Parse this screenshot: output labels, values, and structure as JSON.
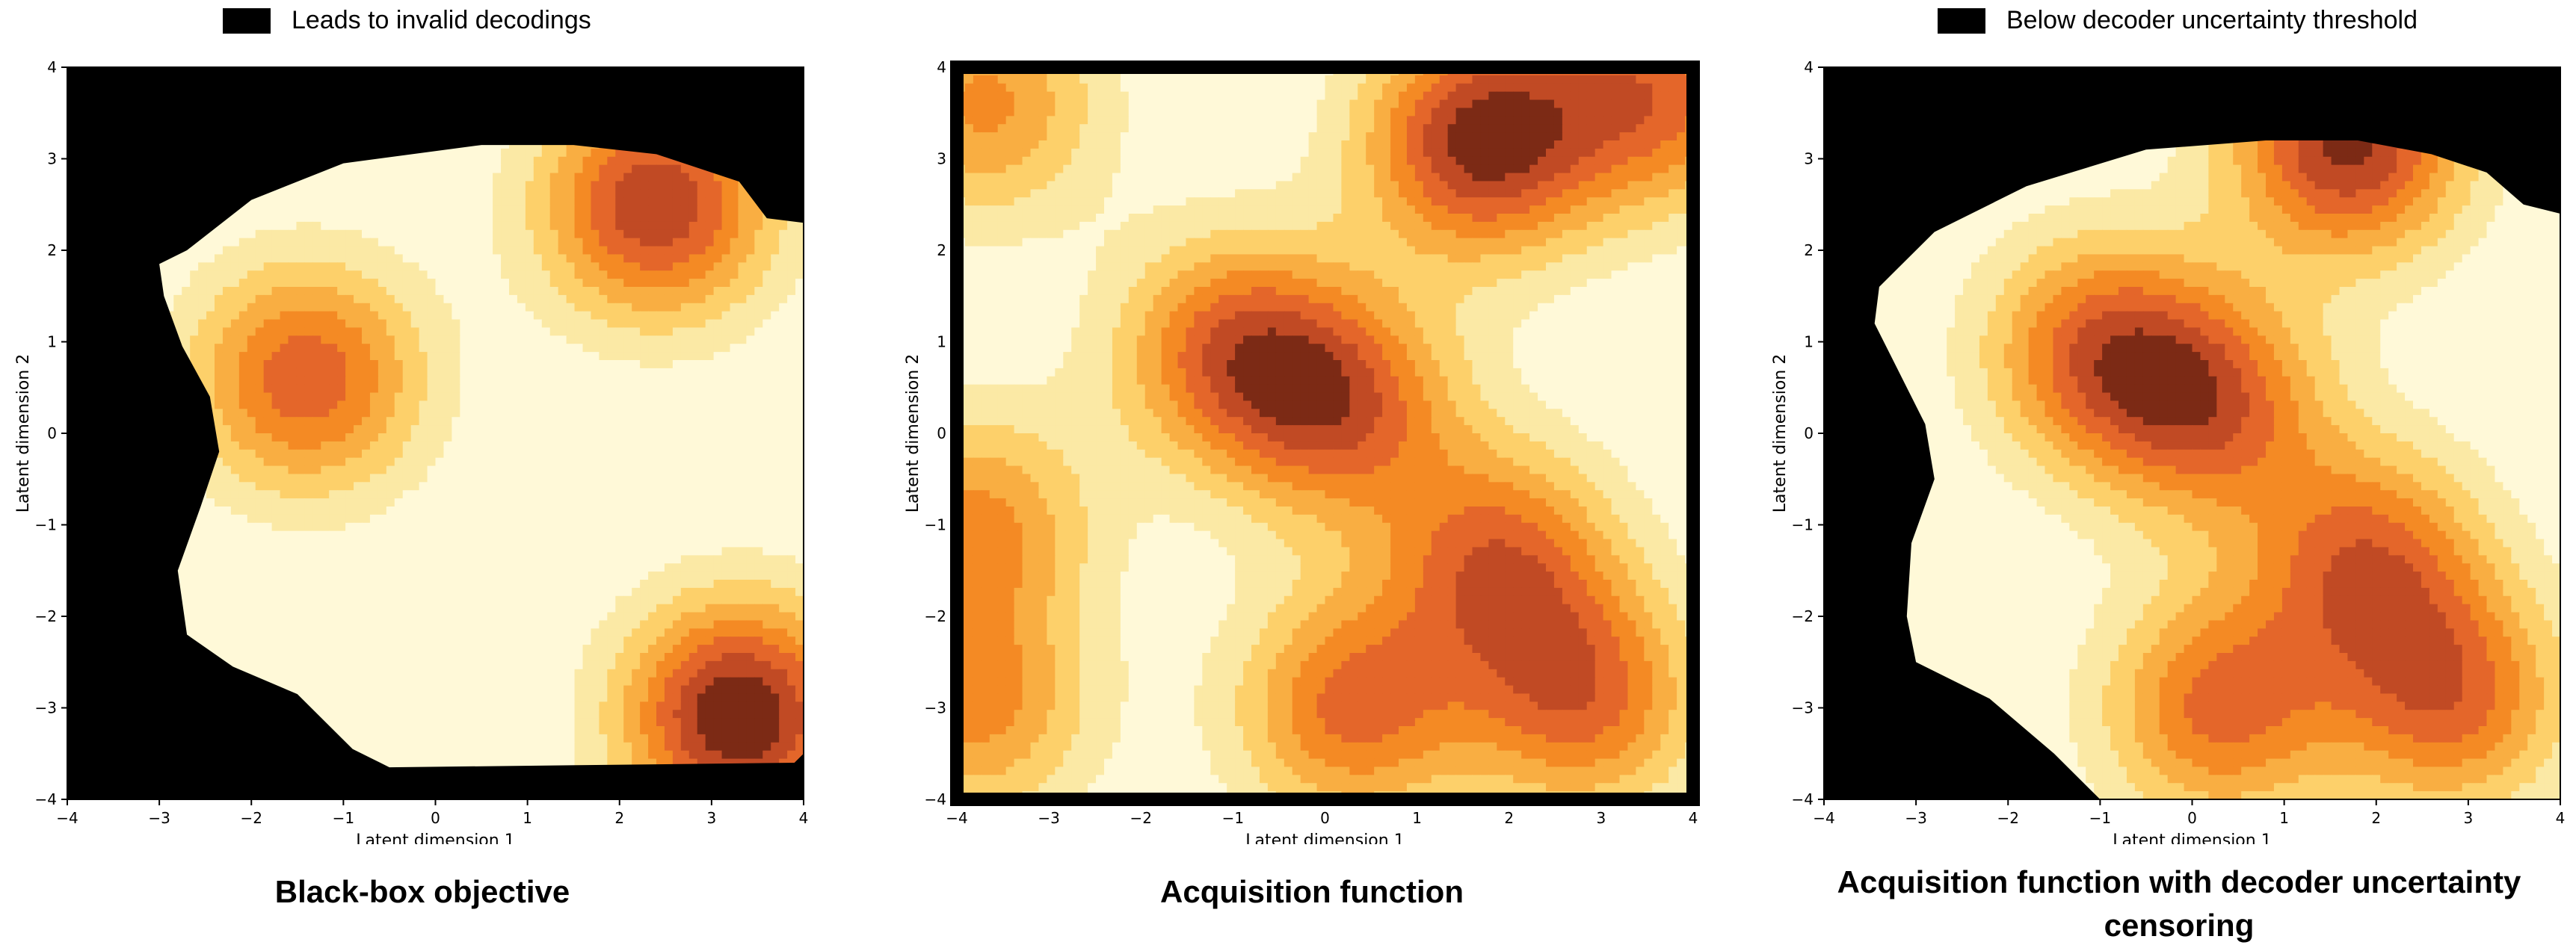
{
  "legend_left": {
    "label": "Leads to invalid decodings",
    "color": "#000000"
  },
  "legend_right": {
    "label": "Below decoder uncertainty threshold",
    "color": "#000000"
  },
  "colors": {
    "levels": [
      "#fff9d8",
      "#fbe9a5",
      "#fdd06a",
      "#f9ae42",
      "#f48a24",
      "#e4662a",
      "#c14a24",
      "#7c2a15"
    ],
    "mask": "#000000",
    "contour": "#000000"
  },
  "chart_data": [
    {
      "type": "heatmap",
      "title": "Black-box objective",
      "xlabel": "Latent dimension 1",
      "ylabel": "Latent dimension 2",
      "xlim": [
        -4,
        4
      ],
      "ylim": [
        -4,
        4
      ],
      "xticks": [
        "−4",
        "−3",
        "−2",
        "−1",
        "0",
        "1",
        "2",
        "3",
        "4"
      ],
      "yticks": [
        "−4",
        "−3",
        "−2",
        "−1",
        "0",
        "1",
        "2",
        "3",
        "4"
      ],
      "mask": "invalid-decodings",
      "peaks": [
        {
          "x": 3.3,
          "y": -3.1,
          "value": 7
        },
        {
          "x": 2.4,
          "y": 2.5,
          "value": 6
        },
        {
          "x": -1.4,
          "y": 0.6,
          "value": 5
        }
      ]
    },
    {
      "type": "heatmap",
      "title": "Acquisition function",
      "xlabel": "Latent dimension 1",
      "ylabel": "Latent dimension 2",
      "xlim": [
        -4,
        4
      ],
      "ylim": [
        -4,
        4
      ],
      "xticks": [
        "−4",
        "−3",
        "−2",
        "−1",
        "0",
        "1",
        "2",
        "3",
        "4"
      ],
      "yticks": [
        "−4",
        "−3",
        "−2",
        "−1",
        "0",
        "1",
        "2",
        "3",
        "4"
      ],
      "mask": "none",
      "peaks": [
        {
          "x": 1.7,
          "y": 3.2,
          "value": 7
        },
        {
          "x": -1.0,
          "y": 0.9,
          "value": 5
        },
        {
          "x": 0.2,
          "y": 0.3,
          "value": 5
        },
        {
          "x": 1.9,
          "y": -1.4,
          "value": 5
        },
        {
          "x": 0.3,
          "y": -3.0,
          "value": 5
        },
        {
          "x": 2.8,
          "y": -2.9,
          "value": 5
        },
        {
          "x": -3.8,
          "y": -1.0,
          "value": 4
        },
        {
          "x": -3.8,
          "y": -3.0,
          "value": 4
        },
        {
          "x": 3.6,
          "y": 3.7,
          "value": 5
        },
        {
          "x": -3.7,
          "y": 3.6,
          "value": 4
        }
      ]
    },
    {
      "type": "heatmap",
      "title": "Acquisition function with decoder uncertainty censoring",
      "xlabel": "Latent dimension 1",
      "ylabel": "Latent dimension 2",
      "xlim": [
        -4,
        4
      ],
      "ylim": [
        -4,
        4
      ],
      "xticks": [
        "−4",
        "−3",
        "−2",
        "−1",
        "0",
        "1",
        "2",
        "3",
        "4"
      ],
      "yticks": [
        "−4",
        "−3",
        "−2",
        "−1",
        "0",
        "1",
        "2",
        "3",
        "4"
      ],
      "mask": "below-decoder-uncertainty-threshold",
      "peaks": [
        {
          "x": 1.7,
          "y": 3.2,
          "value": 7
        },
        {
          "x": -1.0,
          "y": 0.9,
          "value": 5
        },
        {
          "x": 0.2,
          "y": 0.3,
          "value": 5
        },
        {
          "x": 1.9,
          "y": -1.4,
          "value": 5
        },
        {
          "x": 0.3,
          "y": -3.0,
          "value": 5
        },
        {
          "x": 2.8,
          "y": -2.9,
          "value": 5
        }
      ]
    }
  ]
}
